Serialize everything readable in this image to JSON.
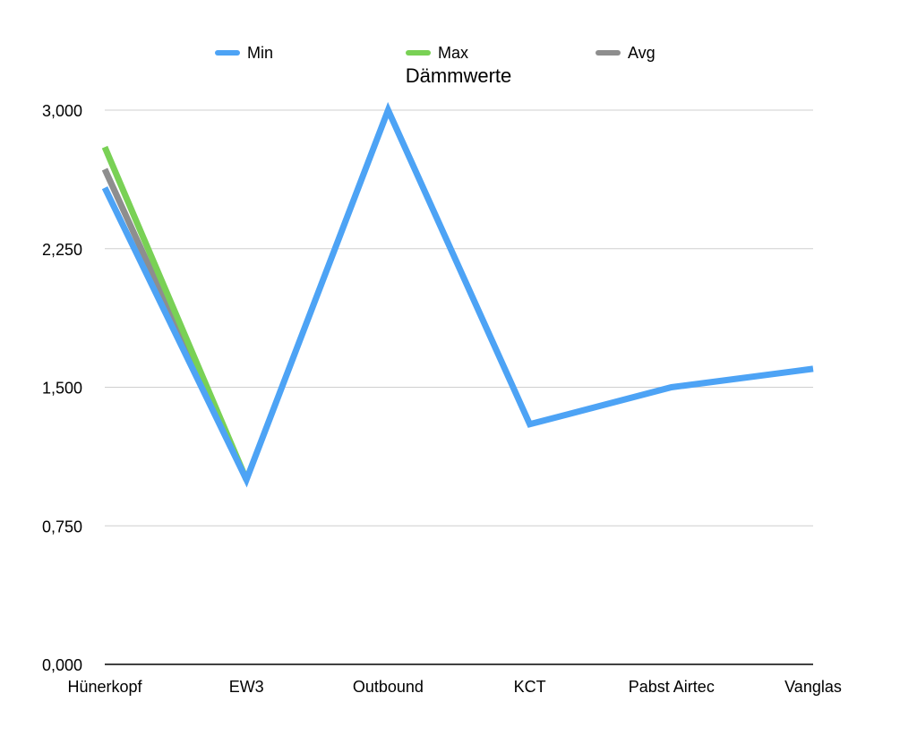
{
  "chart_data": {
    "type": "line",
    "title": "Dämmwerte",
    "categories": [
      "Hünerkopf",
      "EW3",
      "Outbound",
      "KCT",
      "Pabst Airtec",
      "Vanglas"
    ],
    "ylim": [
      0,
      3000
    ],
    "yticks": [
      0,
      750,
      1500,
      2250,
      3000
    ],
    "ytick_labels": [
      "0,000",
      "0,750",
      "1,500",
      "2,250",
      "3,000"
    ],
    "grid": true,
    "legend_position": "top-center",
    "series": [
      {
        "name": "Min",
        "color": "#4da3f5",
        "values": [
          2580,
          1000,
          3000,
          1300,
          1500,
          1600
        ]
      },
      {
        "name": "Max",
        "color": "#79d155",
        "values": [
          2800,
          1000,
          null,
          null,
          null,
          null
        ]
      },
      {
        "name": "Avg",
        "color": "#8e8e8e",
        "values": [
          2680,
          1000,
          null,
          null,
          null,
          null
        ]
      }
    ]
  }
}
